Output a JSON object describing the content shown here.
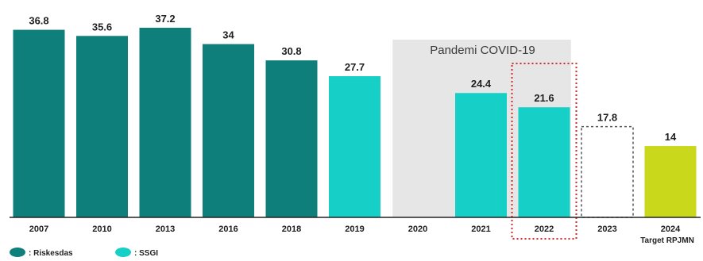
{
  "chart_data": {
    "type": "bar",
    "categories": [
      "2007",
      "2010",
      "2013",
      "2016",
      "2018",
      "2019",
      "2020",
      "2021",
      "2022",
      "2023",
      "2024"
    ],
    "values": [
      36.8,
      35.6,
      37.2,
      34,
      30.8,
      27.7,
      null,
      24.4,
      21.6,
      17.8,
      14
    ],
    "value_labels": [
      "36.8",
      "35.6",
      "37.2",
      "34",
      "30.8",
      "27.7",
      "",
      "24.4",
      "21.6",
      "17.8",
      "14"
    ],
    "bar_style": [
      "riskesdas",
      "riskesdas",
      "riskesdas",
      "riskesdas",
      "riskesdas",
      "ssgi",
      "none",
      "ssgi",
      "ssgi",
      "outline",
      "target"
    ],
    "ylim": [
      0,
      37.2
    ],
    "grid": false,
    "legend_position": "bottom-left",
    "legend": [
      {
        "label": ": Riskesdas",
        "style": "riskesdas"
      },
      {
        "label": ": SSGI",
        "style": "ssgi"
      }
    ],
    "annotations": {
      "pandemic_band_label": "Pandemi COVID-19",
      "pandemic_band_categories": [
        "2020",
        "2022"
      ],
      "highlight_category": "2022",
      "target_note": "Target RPJMN"
    },
    "colors": {
      "riskesdas": "#0e7f7b",
      "ssgi": "#16d0c8",
      "target": "#cad81c",
      "pandemic_band": "#e6e6e6",
      "highlight_border": "#d12a2a",
      "highlight_value": "#1f6f8b",
      "outline_border": "#555555",
      "axis": "#222222"
    }
  }
}
